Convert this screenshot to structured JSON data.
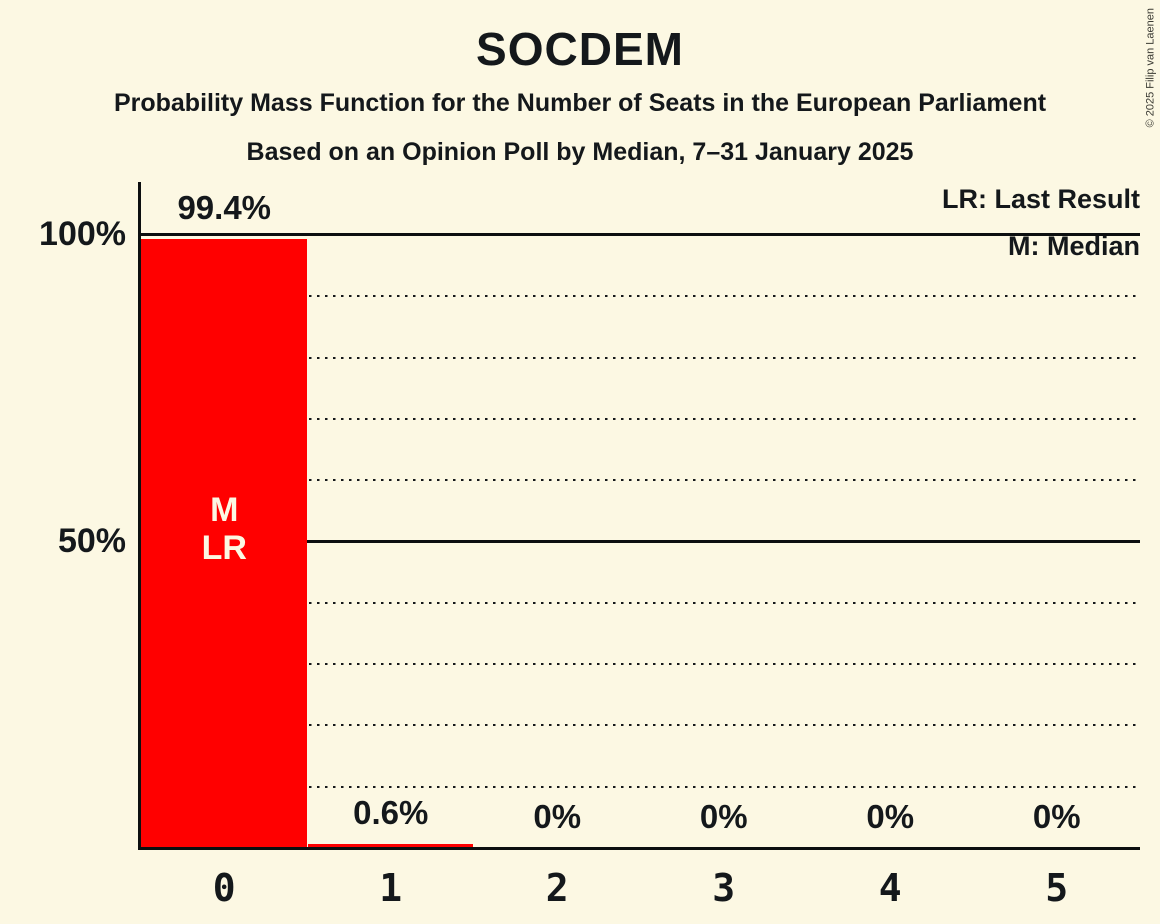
{
  "title": "SOCDEM",
  "subtitle1": "Probability Mass Function for the Number of Seats in the European Parliament",
  "subtitle2": "Based on an Opinion Poll by Median, 7–31 January 2025",
  "copyright": "© 2025 Filip van Laenen",
  "legend": {
    "lr": "LR: Last Result",
    "m": "M: Median"
  },
  "colors": {
    "background": "#FCF8E3",
    "bar": "#FF0000",
    "text": "#14181b",
    "in_bar_text": "#FCF8E3"
  },
  "chart_data": {
    "type": "bar",
    "title": "SOCDEM",
    "categories": [
      "0",
      "1",
      "2",
      "3",
      "4",
      "5"
    ],
    "values": [
      99.4,
      0.6,
      0,
      0,
      0,
      0
    ],
    "value_labels": [
      "99.4%",
      "0.6%",
      "0%",
      "0%",
      "0%",
      "0%"
    ],
    "bar_annotations": [
      [
        "M",
        "LR"
      ],
      [],
      [],
      [],
      [],
      []
    ],
    "median_seats": "0",
    "last_result_seats": "0",
    "xlabel": "",
    "ylabel": "",
    "ylim": [
      0,
      100
    ],
    "yticks": [
      {
        "value": 100,
        "label": "100%"
      },
      {
        "value": 50,
        "label": "50%"
      }
    ],
    "gridlines": {
      "solid": [
        100,
        50
      ],
      "dotted": [
        90,
        80,
        70,
        60,
        40,
        30,
        20,
        10
      ]
    },
    "legend_position": "top-right",
    "grid": true
  }
}
